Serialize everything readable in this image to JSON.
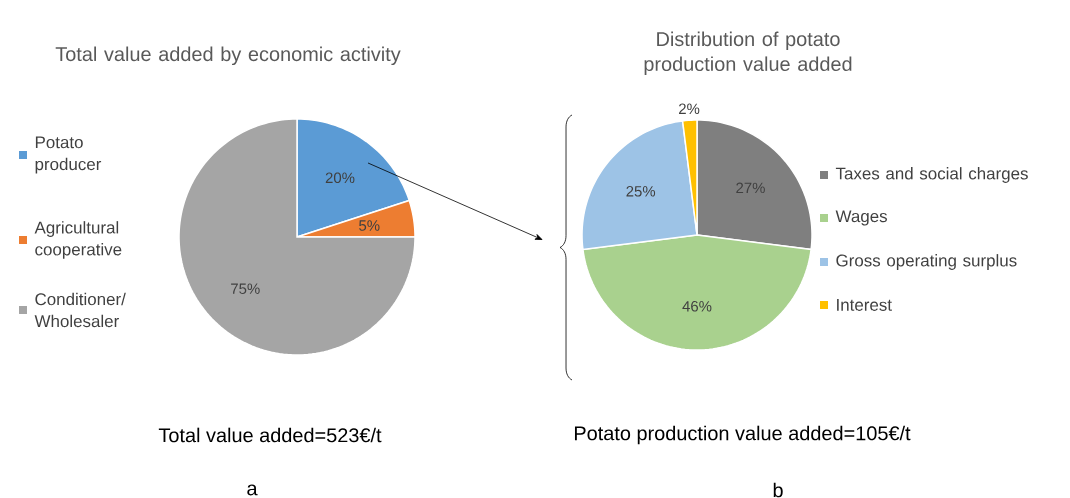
{
  "chart_data": [
    {
      "type": "pie",
      "title": "Total value added by economic activity",
      "categories": [
        "Potato producer",
        "Agricultural cooperative",
        "Conditioner/ Wholesaler"
      ],
      "values": [
        20,
        5,
        75
      ],
      "value_labels": [
        "20%",
        "5%",
        "75%"
      ],
      "colors": [
        "#5b9bd5",
        "#ed7d31",
        "#a5a5a5"
      ],
      "legend": "left",
      "annotations": [
        "Total value added=523€/t",
        "a"
      ]
    },
    {
      "type": "pie",
      "title": "Distribution of potato production value added",
      "categories": [
        "Taxes and social charges",
        "Wages",
        "Gross operating surplus",
        "Interest"
      ],
      "values": [
        27,
        46,
        25,
        2
      ],
      "value_labels": [
        "27%",
        "46%",
        "25%",
        "2%"
      ],
      "colors": [
        "#7f7f7f",
        "#a9d18e",
        "#9dc3e6",
        "#ffc000"
      ],
      "legend": "right",
      "annotations": [
        "Potato production value added=105€/t",
        "b"
      ]
    }
  ]
}
